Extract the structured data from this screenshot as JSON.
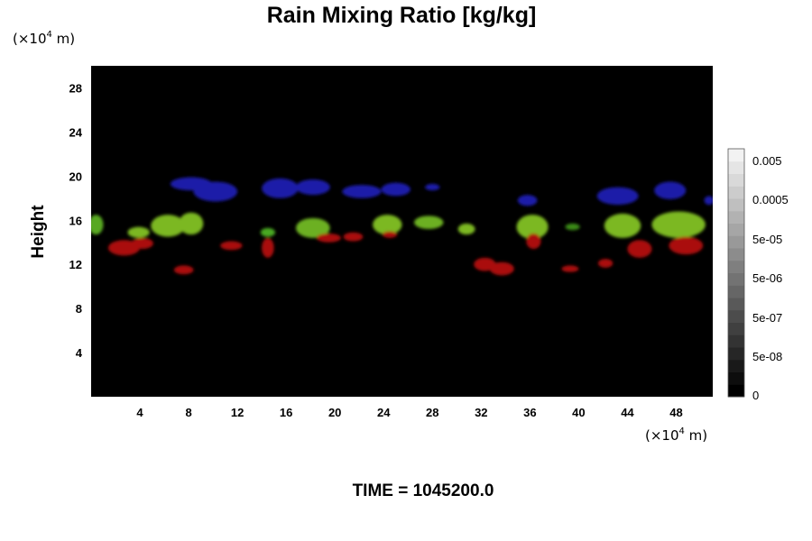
{
  "chart_data": {
    "type": "heatmap",
    "title": "Rain Mixing Ratio [kg/kg]",
    "ylabel": "Height",
    "x_unit_prefix": "(×10",
    "x_unit_exp": "4",
    "x_unit_suffix": " m)",
    "y_unit_prefix": "(×10",
    "y_unit_exp": "4",
    "y_unit_suffix": " m)",
    "xlim": [
      0,
      51
    ],
    "ylim": [
      0,
      30
    ],
    "x_ticks": [
      4,
      8,
      12,
      16,
      20,
      24,
      28,
      32,
      36,
      40,
      44,
      48
    ],
    "y_ticks": [
      4,
      8,
      12,
      16,
      20,
      24,
      28
    ],
    "background_color": "#000000",
    "colorbar": {
      "labels": [
        "0",
        "5e-08",
        "5e-07",
        "5e-06",
        "5e-05",
        "0.0005",
        "0.005"
      ],
      "levels": 20,
      "color_low": "#000000",
      "color_high": "#f2f2f2"
    },
    "features": [
      {
        "color": "#1a1aa8",
        "x": 8.2,
        "y": 19.3,
        "rx": 1.7,
        "ry": 0.6
      },
      {
        "color": "#1a1aa8",
        "x": 10.2,
        "y": 18.6,
        "rx": 1.8,
        "ry": 0.9
      },
      {
        "color": "#1a1aa8",
        "x": 15.5,
        "y": 18.9,
        "rx": 1.5,
        "ry": 0.9
      },
      {
        "color": "#1a1aa8",
        "x": 18.2,
        "y": 19.0,
        "rx": 1.4,
        "ry": 0.7
      },
      {
        "color": "#1a1aa8",
        "x": 22.2,
        "y": 18.6,
        "rx": 1.6,
        "ry": 0.6
      },
      {
        "color": "#1a1aa8",
        "x": 25.0,
        "y": 18.8,
        "rx": 1.2,
        "ry": 0.6
      },
      {
        "color": "#1a1aa8",
        "x": 28.0,
        "y": 19.0,
        "rx": 0.6,
        "ry": 0.3
      },
      {
        "color": "#1a1aa8",
        "x": 35.8,
        "y": 17.8,
        "rx": 0.8,
        "ry": 0.5
      },
      {
        "color": "#1a1aa8",
        "x": 43.2,
        "y": 18.2,
        "rx": 1.7,
        "ry": 0.8
      },
      {
        "color": "#1a1aa8",
        "x": 47.5,
        "y": 18.7,
        "rx": 1.3,
        "ry": 0.8
      },
      {
        "color": "#1a1aa8",
        "x": 50.7,
        "y": 17.8,
        "rx": 0.4,
        "ry": 0.4
      },
      {
        "color": "#58a820",
        "x": 0.4,
        "y": 15.6,
        "rx": 0.6,
        "ry": 0.9
      },
      {
        "color": "#7cb820",
        "x": 3.9,
        "y": 14.9,
        "rx": 0.9,
        "ry": 0.5
      },
      {
        "color": "#7cb820",
        "x": 6.3,
        "y": 15.5,
        "rx": 1.4,
        "ry": 1.0
      },
      {
        "color": "#7cb820",
        "x": 8.2,
        "y": 15.7,
        "rx": 1.0,
        "ry": 1.0
      },
      {
        "color": "#48a820",
        "x": 14.5,
        "y": 14.9,
        "rx": 0.6,
        "ry": 0.4
      },
      {
        "color": "#6cb020",
        "x": 18.2,
        "y": 15.3,
        "rx": 1.4,
        "ry": 0.9
      },
      {
        "color": "#7cb820",
        "x": 24.3,
        "y": 15.6,
        "rx": 1.2,
        "ry": 0.9
      },
      {
        "color": "#6cb020",
        "x": 27.7,
        "y": 15.8,
        "rx": 1.2,
        "ry": 0.6
      },
      {
        "color": "#7cb820",
        "x": 30.8,
        "y": 15.2,
        "rx": 0.7,
        "ry": 0.5
      },
      {
        "color": "#7cb820",
        "x": 36.2,
        "y": 15.4,
        "rx": 1.3,
        "ry": 1.1
      },
      {
        "color": "#3a8a18",
        "x": 39.5,
        "y": 15.4,
        "rx": 0.6,
        "ry": 0.3
      },
      {
        "color": "#7cb820",
        "x": 43.6,
        "y": 15.5,
        "rx": 1.5,
        "ry": 1.1
      },
      {
        "color": "#7cb820",
        "x": 48.2,
        "y": 15.6,
        "rx": 2.2,
        "ry": 1.2
      },
      {
        "color": "#aa1010",
        "x": 2.7,
        "y": 13.5,
        "rx": 1.3,
        "ry": 0.7
      },
      {
        "color": "#aa1010",
        "x": 4.2,
        "y": 13.9,
        "rx": 0.9,
        "ry": 0.5
      },
      {
        "color": "#aa1010",
        "x": 7.6,
        "y": 11.5,
        "rx": 0.8,
        "ry": 0.4
      },
      {
        "color": "#aa1010",
        "x": 11.5,
        "y": 13.7,
        "rx": 0.9,
        "ry": 0.4
      },
      {
        "color": "#aa1010",
        "x": 14.5,
        "y": 13.5,
        "rx": 0.5,
        "ry": 0.9
      },
      {
        "color": "#aa1010",
        "x": 19.5,
        "y": 14.4,
        "rx": 1.0,
        "ry": 0.4
      },
      {
        "color": "#aa1010",
        "x": 21.5,
        "y": 14.5,
        "rx": 0.8,
        "ry": 0.4
      },
      {
        "color": "#aa1010",
        "x": 24.5,
        "y": 14.7,
        "rx": 0.6,
        "ry": 0.3
      },
      {
        "color": "#aa1010",
        "x": 32.3,
        "y": 12.0,
        "rx": 0.9,
        "ry": 0.6
      },
      {
        "color": "#aa1010",
        "x": 33.7,
        "y": 11.6,
        "rx": 1.0,
        "ry": 0.6
      },
      {
        "color": "#aa1010",
        "x": 36.3,
        "y": 14.1,
        "rx": 0.6,
        "ry": 0.7
      },
      {
        "color": "#aa1010",
        "x": 39.3,
        "y": 11.6,
        "rx": 0.7,
        "ry": 0.3
      },
      {
        "color": "#aa1010",
        "x": 42.2,
        "y": 12.1,
        "rx": 0.6,
        "ry": 0.4
      },
      {
        "color": "#aa1010",
        "x": 45.0,
        "y": 13.4,
        "rx": 1.0,
        "ry": 0.8
      },
      {
        "color": "#aa1010",
        "x": 48.8,
        "y": 13.7,
        "rx": 1.4,
        "ry": 0.8
      }
    ]
  },
  "footer": {
    "time_label": "TIME = 1045200.0"
  }
}
